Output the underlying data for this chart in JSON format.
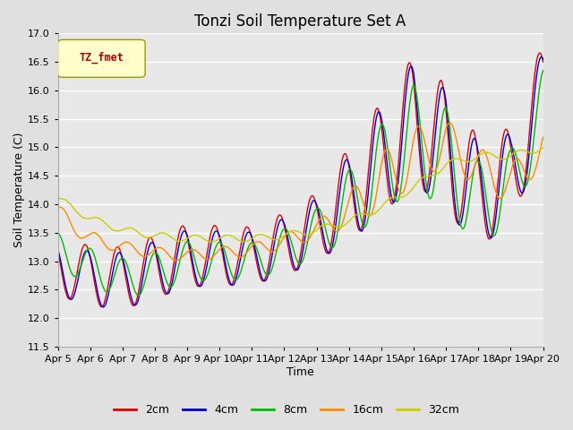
{
  "title": "Tonzi Soil Temperature Set A",
  "xlabel": "Time",
  "ylabel": "Soil Temperature (C)",
  "ylim": [
    11.5,
    17.0
  ],
  "yticks": [
    11.5,
    12.0,
    12.5,
    13.0,
    13.5,
    14.0,
    14.5,
    15.0,
    15.5,
    16.0,
    16.5,
    17.0
  ],
  "xtick_labels": [
    "Apr 5",
    "Apr 6",
    "Apr 7",
    "Apr 8",
    "Apr 9",
    "Apr 10",
    "Apr 11",
    "Apr 12",
    "Apr 13",
    "Apr 14",
    "Apr 15",
    "Apr 16",
    "Apr 17",
    "Apr 18",
    "Apr 19",
    "Apr 20"
  ],
  "legend_label": "TZ_fmet",
  "series_labels": [
    "2cm",
    "4cm",
    "8cm",
    "16cm",
    "32cm"
  ],
  "series_colors": [
    "#dd0000",
    "#0000cc",
    "#00bb00",
    "#ff8800",
    "#cccc00"
  ],
  "plot_bg_color": "#e8e8e8",
  "fig_bg_color": "#e0e0e0",
  "title_fontsize": 12,
  "axis_label_fontsize": 9,
  "tick_fontsize": 8
}
